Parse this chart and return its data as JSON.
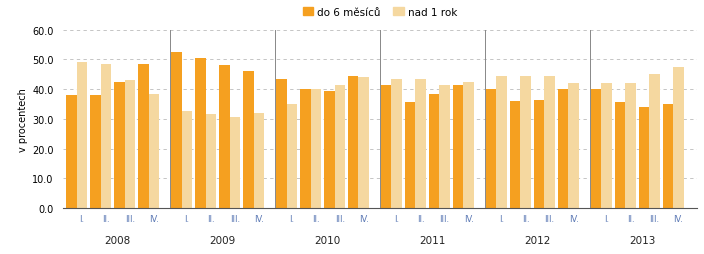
{
  "years": [
    "2008",
    "2009",
    "2010",
    "2011",
    "2012",
    "2013"
  ],
  "quarters": [
    "I.",
    "II.",
    "III.",
    "IV."
  ],
  "orange_values": [
    [
      38.0,
      38.0,
      42.5,
      48.5
    ],
    [
      52.5,
      50.5,
      48.0,
      46.0
    ],
    [
      43.5,
      40.0,
      39.5,
      44.5
    ],
    [
      41.5,
      35.5,
      38.5,
      41.5
    ],
    [
      40.0,
      36.0,
      36.5,
      40.0
    ],
    [
      40.0,
      35.5,
      34.0,
      35.0
    ]
  ],
  "light_values": [
    [
      49.0,
      48.5,
      43.0,
      38.5
    ],
    [
      32.5,
      31.5,
      30.5,
      32.0
    ],
    [
      35.0,
      40.0,
      41.5,
      44.0
    ],
    [
      43.5,
      43.5,
      41.5,
      42.5
    ],
    [
      44.5,
      44.5,
      44.5,
      42.0
    ],
    [
      42.0,
      42.0,
      45.0,
      47.5
    ]
  ],
  "orange_color": "#F5A020",
  "light_color": "#F5D8A0",
  "ylabel": "v procentech",
  "ylim": [
    0,
    60
  ],
  "yticks": [
    0.0,
    10.0,
    20.0,
    30.0,
    40.0,
    50.0,
    60.0
  ],
  "legend_labels": [
    "do 6 měsíců",
    "nad 1 rok"
  ],
  "grid_color": "#BBBBBB",
  "sep_color": "#888888",
  "background_color": "#FFFFFF",
  "quarter_label_color": "#5B78B4",
  "year_label_color": "#222222"
}
